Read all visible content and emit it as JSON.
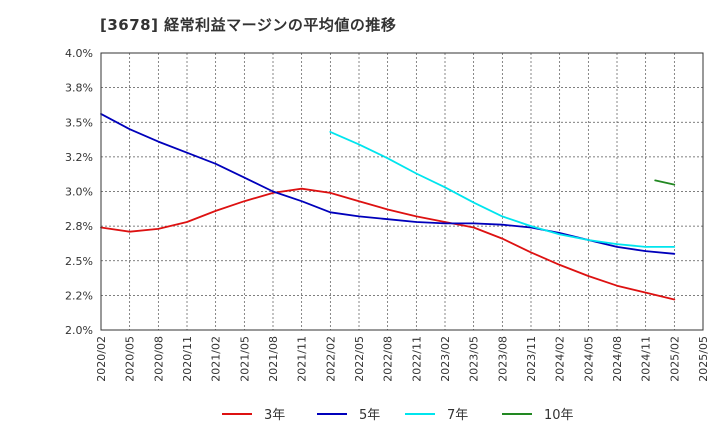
{
  "chart_data": {
    "type": "line",
    "title": "[3678]  経常利益マージンの平均値の推移",
    "xlabel": "",
    "ylabel": "",
    "y_range": [
      2.0,
      4.0
    ],
    "y_ticks": [
      "4.0%",
      "3.8%",
      "3.5%",
      "3.2%",
      "3.0%",
      "2.8%",
      "2.5%",
      "2.2%",
      "2.0%"
    ],
    "x_ticks": [
      "2020/02",
      "2020/05",
      "2020/08",
      "2020/11",
      "2021/02",
      "2021/05",
      "2021/08",
      "2021/11",
      "2022/02",
      "2022/05",
      "2022/08",
      "2022/11",
      "2023/02",
      "2023/05",
      "2023/08",
      "2023/11",
      "2024/02",
      "2024/05",
      "2024/08",
      "2024/11",
      "2025/02",
      "2025/05"
    ],
    "grid": true,
    "legend_position": "bottom",
    "series": [
      {
        "name": "3年",
        "color": "#dd1111",
        "x": [
          "2020/02",
          "2020/05",
          "2020/08",
          "2020/11",
          "2021/02",
          "2021/05",
          "2021/08",
          "2021/11",
          "2022/02",
          "2022/05",
          "2022/08",
          "2022/11",
          "2023/02",
          "2023/05",
          "2023/08",
          "2023/11",
          "2024/02",
          "2024/05",
          "2024/08",
          "2024/11",
          "2025/02"
        ],
        "values": [
          2.74,
          2.71,
          2.73,
          2.78,
          2.86,
          2.93,
          2.99,
          3.02,
          2.99,
          2.93,
          2.87,
          2.82,
          2.78,
          2.74,
          2.66,
          2.56,
          2.47,
          2.39,
          2.32,
          2.27,
          2.22
        ]
      },
      {
        "name": "5年",
        "color": "#0000bb",
        "x": [
          "2020/02",
          "2020/05",
          "2020/08",
          "2020/11",
          "2021/02",
          "2021/05",
          "2021/08",
          "2021/11",
          "2022/02",
          "2022/05",
          "2022/08",
          "2022/11",
          "2023/02",
          "2023/05",
          "2023/08",
          "2023/11",
          "2024/02",
          "2024/05",
          "2024/08",
          "2024/11",
          "2025/02"
        ],
        "values": [
          3.56,
          3.45,
          3.36,
          3.28,
          3.2,
          3.1,
          3.0,
          2.93,
          2.85,
          2.82,
          2.8,
          2.78,
          2.77,
          2.77,
          2.76,
          2.74,
          2.7,
          2.65,
          2.6,
          2.57,
          2.55
        ]
      },
      {
        "name": "7年",
        "color": "#00e5ee",
        "x": [
          "2022/02",
          "2022/05",
          "2022/08",
          "2022/11",
          "2023/02",
          "2023/05",
          "2023/08",
          "2023/11",
          "2024/02",
          "2024/05",
          "2024/08",
          "2024/11",
          "2025/02"
        ],
        "values": [
          3.43,
          3.34,
          3.24,
          3.13,
          3.03,
          2.92,
          2.82,
          2.75,
          2.69,
          2.65,
          2.62,
          2.6,
          2.6
        ]
      },
      {
        "name": "10年",
        "color": "#228822",
        "x": [
          "2024/12",
          "2025/02"
        ],
        "values": [
          3.08,
          3.05
        ]
      }
    ]
  }
}
